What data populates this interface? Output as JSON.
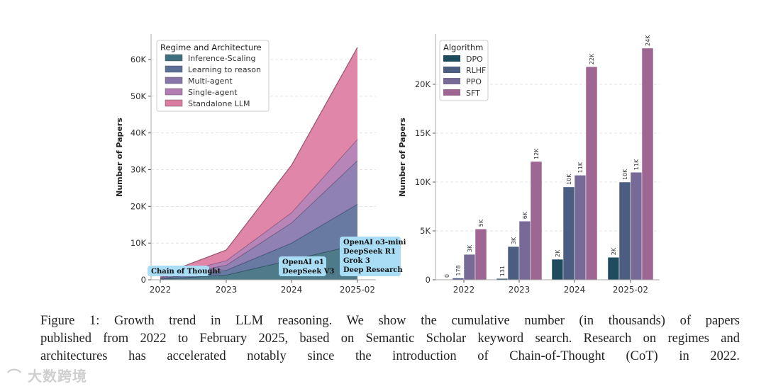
{
  "chart_data": [
    {
      "type": "area",
      "stacked": true,
      "title": "",
      "xlabel": "",
      "ylabel": "Number of Papers",
      "x": [
        "2022",
        "2023",
        "2024",
        "2025-02"
      ],
      "yticks": [
        "0",
        "10K",
        "20K",
        "30K",
        "40K",
        "50K",
        "60K"
      ],
      "ylim": [
        0,
        66000
      ],
      "grid": "horizontal dashed",
      "legend": {
        "title": "Regime and Architecture",
        "placement": "top-left"
      },
      "series": [
        {
          "name": "Inference-Scaling",
          "color": "#3f6f7f",
          "values": [
            200,
            1300,
            5400,
            9600
          ]
        },
        {
          "name": "Learning to reason",
          "color": "#5b6f99",
          "values": [
            200,
            1300,
            4600,
            11000
          ]
        },
        {
          "name": "Multi-agent",
          "color": "#8676aa",
          "values": [
            200,
            1400,
            5500,
            11900
          ]
        },
        {
          "name": "Single-agent",
          "color": "#b27bb2",
          "values": [
            200,
            1200,
            2800,
            5800
          ]
        },
        {
          "name": "Standalone LLM",
          "color": "#dd7ca1",
          "values": [
            500,
            2900,
            12900,
            25000
          ]
        }
      ],
      "annotations": [
        {
          "x": "2022",
          "lines": [
            "Chain of Thought"
          ]
        },
        {
          "x": "2024",
          "lines": [
            "OpenAI o1",
            "DeepSeek V3"
          ]
        },
        {
          "x": "2025-02",
          "lines": [
            "OpenAI o3-mini",
            "DeepSeek R1",
            "Grok 3",
            "Deep Research"
          ]
        }
      ]
    },
    {
      "type": "bar",
      "title": "",
      "xlabel": "",
      "ylabel": "Number of Papers",
      "categories": [
        "2022",
        "2023",
        "2024",
        "2025-02"
      ],
      "yticks": [
        "0",
        "5K",
        "10K",
        "15K",
        "20K"
      ],
      "ylim": [
        0,
        25000
      ],
      "grid": "horizontal dashed",
      "legend": {
        "title": "Algorithm",
        "placement": "top-left"
      },
      "series": [
        {
          "name": "DPO",
          "color": "#1f4b60",
          "values": [
            0,
            131,
            2100,
            2300
          ],
          "labels": [
            "0",
            "131",
            "2K",
            "2K"
          ]
        },
        {
          "name": "RLHF",
          "color": "#4b5d80",
          "values": [
            178,
            3400,
            9500,
            10000
          ],
          "labels": [
            "178",
            "3K",
            "10K",
            "10K"
          ]
        },
        {
          "name": "PPO",
          "color": "#776a96",
          "values": [
            2600,
            6000,
            10700,
            11000
          ],
          "labels": [
            "3K",
            "6K",
            "11K",
            "11K"
          ]
        },
        {
          "name": "SFT",
          "color": "#9e6692",
          "values": [
            5200,
            12100,
            21800,
            23700
          ],
          "labels": [
            "5K",
            "12K",
            "22K",
            "24K"
          ]
        }
      ]
    }
  ],
  "caption": {
    "lines": [
      "Figure 1:  Growth trend in LLM reasoning.  We show the cumulative number (in thousands) of papers",
      "published from 2022 to February 2025, based on Semantic Scholar keyword search. Research on regimes and",
      "architectures has accelerated notably since the introduction of Chain-of-Thought (CoT) in 2022."
    ]
  },
  "watermark": "大数跨境",
  "annotation_color": "#a9ddf6"
}
